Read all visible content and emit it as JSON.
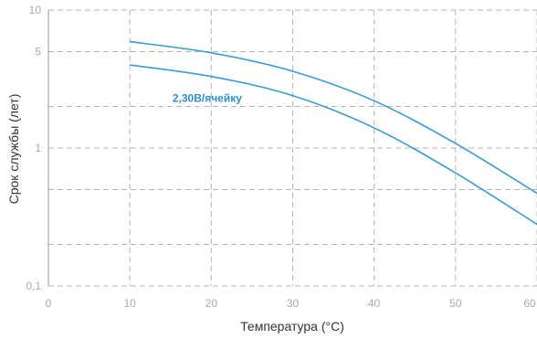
{
  "chart_data": {
    "type": "line",
    "title": "",
    "xlabel": "Температура (°C)",
    "ylabel": "Срок службы (лет)",
    "xlim": [
      0,
      60
    ],
    "ylim": [
      0.1,
      10
    ],
    "y_scale": "log",
    "grid": true,
    "x_ticks": [
      {
        "value": 0,
        "label": "0"
      },
      {
        "value": 10,
        "label": "10"
      },
      {
        "value": 20,
        "label": "20"
      },
      {
        "value": 30,
        "label": "30"
      },
      {
        "value": 40,
        "label": "40"
      },
      {
        "value": 50,
        "label": "50"
      },
      {
        "value": 60,
        "label": "60"
      }
    ],
    "y_ticks": [
      {
        "value": 10,
        "label": "10"
      },
      {
        "value": 5,
        "label": "5"
      },
      {
        "value": 1,
        "label": "1"
      },
      {
        "value": 0.1,
        "label": "0,1"
      }
    ],
    "y_gridlines": [
      10,
      5,
      2,
      1,
      0.5,
      0.2,
      0.1
    ],
    "series": [
      {
        "x": [
          10,
          20,
          30,
          40,
          50,
          60
        ],
        "y": [
          5.9,
          4.9,
          3.6,
          2.2,
          1.08,
          0.47
        ]
      },
      {
        "x": [
          10,
          20,
          30,
          40,
          50,
          60
        ],
        "y": [
          4.0,
          3.3,
          2.4,
          1.4,
          0.66,
          0.28
        ]
      }
    ],
    "annotations": [
      {
        "text": "2,30В/ячейку",
        "x": 19.5,
        "y": 2.3
      }
    ],
    "colors": {
      "line": "#3b9ad1",
      "annotation": "#2e8fd0",
      "grid": "#b4b4b4",
      "axis_text": "#aaaaaa",
      "label_text": "#333333"
    }
  }
}
